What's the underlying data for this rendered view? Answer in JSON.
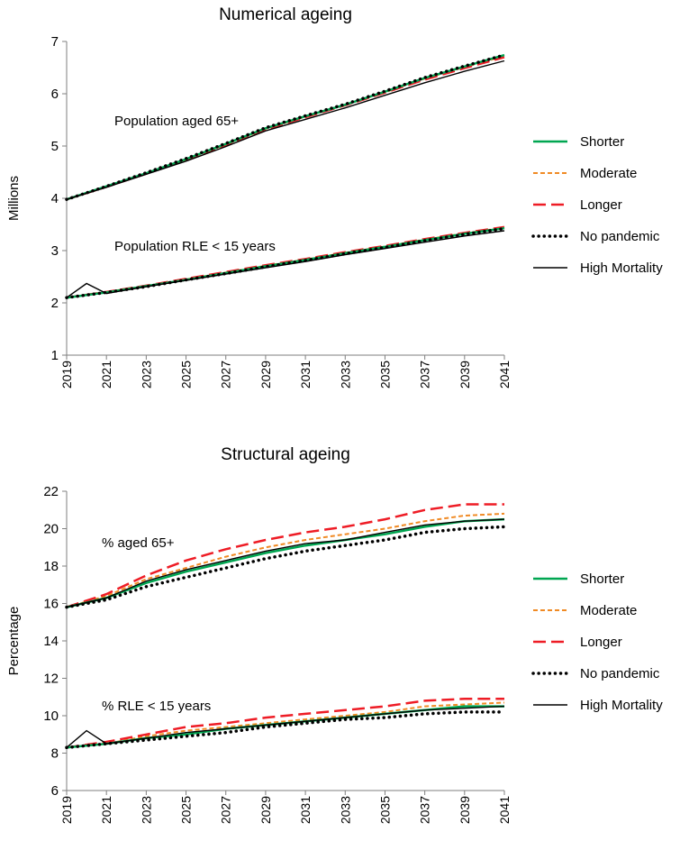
{
  "chart_data": [
    {
      "type": "line",
      "title": "Numerical ageing",
      "xlabel": "",
      "ylabel": "Millions",
      "xlim": [
        2019,
        2041
      ],
      "ylim": [
        1,
        7
      ],
      "yticks": [
        1,
        2,
        3,
        4,
        5,
        6,
        7
      ],
      "xticks": [
        2019,
        2021,
        2023,
        2025,
        2027,
        2029,
        2031,
        2033,
        2035,
        2037,
        2039,
        2041
      ],
      "grid": false,
      "legend_position": "right",
      "annotations": [
        "Population aged 65+",
        "Population RLE < 15 years"
      ],
      "groups": [
        {
          "label": "Population aged 65+",
          "series": [
            {
              "name": "Shorter",
              "x": [
                2019,
                2021,
                2023,
                2025,
                2027,
                2029,
                2031,
                2033,
                2035,
                2037,
                2039,
                2041
              ],
              "values": [
                3.98,
                4.23,
                4.48,
                4.75,
                5.04,
                5.34,
                5.57,
                5.79,
                6.04,
                6.3,
                6.52,
                6.74
              ]
            },
            {
              "name": "Moderate",
              "x": [
                2019,
                2021,
                2023,
                2025,
                2027,
                2029,
                2031,
                2033,
                2035,
                2037,
                2039,
                2041
              ],
              "values": [
                3.98,
                4.22,
                4.48,
                4.74,
                5.03,
                5.33,
                5.56,
                5.79,
                6.03,
                6.29,
                6.51,
                6.72
              ]
            },
            {
              "name": "Longer",
              "x": [
                2019,
                2021,
                2023,
                2025,
                2027,
                2029,
                2031,
                2033,
                2035,
                2037,
                2039,
                2041
              ],
              "values": [
                3.98,
                4.22,
                4.47,
                4.73,
                5.02,
                5.32,
                5.55,
                5.78,
                6.02,
                6.27,
                6.49,
                6.7
              ]
            },
            {
              "name": "No pandemic",
              "x": [
                2019,
                2021,
                2023,
                2025,
                2027,
                2029,
                2031,
                2033,
                2035,
                2037,
                2039,
                2041
              ],
              "values": [
                3.98,
                4.23,
                4.49,
                4.76,
                5.05,
                5.35,
                5.58,
                5.8,
                6.05,
                6.31,
                6.53,
                6.74
              ]
            },
            {
              "name": "High Mortality",
              "x": [
                2019,
                2021,
                2023,
                2025,
                2027,
                2029,
                2031,
                2033,
                2035,
                2037,
                2039,
                2041
              ],
              "values": [
                3.98,
                4.21,
                4.46,
                4.71,
                4.99,
                5.29,
                5.51,
                5.73,
                5.97,
                6.21,
                6.43,
                6.63
              ]
            }
          ]
        },
        {
          "label": "Population RLE < 15 years",
          "series": [
            {
              "name": "Shorter",
              "x": [
                2019,
                2021,
                2023,
                2025,
                2027,
                2029,
                2031,
                2033,
                2035,
                2037,
                2039,
                2041
              ],
              "values": [
                2.1,
                2.2,
                2.32,
                2.44,
                2.57,
                2.7,
                2.82,
                2.95,
                3.07,
                3.2,
                3.32,
                3.43
              ]
            },
            {
              "name": "Moderate",
              "x": [
                2019,
                2021,
                2023,
                2025,
                2027,
                2029,
                2031,
                2033,
                2035,
                2037,
                2039,
                2041
              ],
              "values": [
                2.1,
                2.21,
                2.32,
                2.45,
                2.58,
                2.71,
                2.83,
                2.96,
                3.08,
                3.21,
                3.33,
                3.44
              ]
            },
            {
              "name": "Longer",
              "x": [
                2019,
                2021,
                2023,
                2025,
                2027,
                2029,
                2031,
                2033,
                2035,
                2037,
                2039,
                2041
              ],
              "values": [
                2.1,
                2.21,
                2.33,
                2.46,
                2.59,
                2.72,
                2.84,
                2.97,
                3.09,
                3.22,
                3.34,
                3.45
              ]
            },
            {
              "name": "No pandemic",
              "x": [
                2019,
                2021,
                2023,
                2025,
                2027,
                2029,
                2031,
                2033,
                2035,
                2037,
                2039,
                2041
              ],
              "values": [
                2.1,
                2.2,
                2.31,
                2.44,
                2.56,
                2.69,
                2.81,
                2.94,
                3.06,
                3.19,
                3.31,
                3.42
              ]
            },
            {
              "name": "High Mortality",
              "x": [
                2019,
                2020,
                2021,
                2023,
                2025,
                2027,
                2029,
                2031,
                2033,
                2035,
                2037,
                2039,
                2041
              ],
              "values": [
                2.1,
                2.37,
                2.18,
                2.31,
                2.43,
                2.55,
                2.67,
                2.79,
                2.92,
                3.04,
                3.16,
                3.28,
                3.38
              ]
            }
          ]
        }
      ]
    },
    {
      "type": "line",
      "title": "Structural ageing",
      "xlabel": "",
      "ylabel": "Percentage",
      "xlim": [
        2019,
        2041
      ],
      "ylim": [
        6,
        22
      ],
      "yticks": [
        6,
        8,
        10,
        12,
        14,
        16,
        18,
        20,
        22
      ],
      "xticks": [
        2019,
        2021,
        2023,
        2025,
        2027,
        2029,
        2031,
        2033,
        2035,
        2037,
        2039,
        2041
      ],
      "grid": false,
      "legend_position": "right",
      "annotations": [
        "% aged 65+",
        "% RLE < 15 years"
      ],
      "groups": [
        {
          "label": "% aged 65+",
          "series": [
            {
              "name": "Shorter",
              "x": [
                2019,
                2021,
                2023,
                2025,
                2027,
                2029,
                2031,
                2033,
                2035,
                2037,
                2039,
                2041
              ],
              "values": [
                15.8,
                16.3,
                17.1,
                17.7,
                18.2,
                18.7,
                19.1,
                19.4,
                19.7,
                20.1,
                20.4,
                20.5
              ]
            },
            {
              "name": "Moderate",
              "x": [
                2019,
                2021,
                2023,
                2025,
                2027,
                2029,
                2031,
                2033,
                2035,
                2037,
                2039,
                2041
              ],
              "values": [
                15.8,
                16.4,
                17.3,
                17.9,
                18.5,
                19.0,
                19.4,
                19.7,
                20.0,
                20.4,
                20.7,
                20.8
              ]
            },
            {
              "name": "Longer",
              "x": [
                2019,
                2021,
                2023,
                2025,
                2027,
                2029,
                2031,
                2033,
                2035,
                2037,
                2039,
                2041
              ],
              "values": [
                15.8,
                16.5,
                17.5,
                18.3,
                18.9,
                19.4,
                19.8,
                20.1,
                20.5,
                21.0,
                21.3,
                21.3
              ]
            },
            {
              "name": "No pandemic",
              "x": [
                2019,
                2021,
                2023,
                2025,
                2027,
                2029,
                2031,
                2033,
                2035,
                2037,
                2039,
                2041
              ],
              "values": [
                15.8,
                16.2,
                16.9,
                17.4,
                17.9,
                18.4,
                18.8,
                19.1,
                19.4,
                19.8,
                20.0,
                20.1
              ]
            },
            {
              "name": "High Mortality",
              "x": [
                2019,
                2021,
                2023,
                2025,
                2027,
                2029,
                2031,
                2033,
                2035,
                2037,
                2039,
                2041
              ],
              "values": [
                15.8,
                16.3,
                17.2,
                17.8,
                18.3,
                18.8,
                19.2,
                19.4,
                19.8,
                20.2,
                20.4,
                20.5
              ]
            }
          ]
        },
        {
          "label": "% RLE < 15 years",
          "series": [
            {
              "name": "Shorter",
              "x": [
                2019,
                2021,
                2023,
                2025,
                2027,
                2029,
                2031,
                2033,
                2035,
                2037,
                2039,
                2041
              ],
              "values": [
                8.3,
                8.5,
                8.8,
                9.0,
                9.3,
                9.5,
                9.7,
                9.9,
                10.1,
                10.3,
                10.5,
                10.5
              ]
            },
            {
              "name": "Moderate",
              "x": [
                2019,
                2021,
                2023,
                2025,
                2027,
                2029,
                2031,
                2033,
                2035,
                2037,
                2039,
                2041
              ],
              "values": [
                8.3,
                8.5,
                8.9,
                9.2,
                9.4,
                9.6,
                9.8,
                10.0,
                10.2,
                10.5,
                10.6,
                10.7
              ]
            },
            {
              "name": "Longer",
              "x": [
                2019,
                2021,
                2023,
                2025,
                2027,
                2029,
                2031,
                2033,
                2035,
                2037,
                2039,
                2041
              ],
              "values": [
                8.3,
                8.6,
                9.0,
                9.4,
                9.6,
                9.9,
                10.1,
                10.3,
                10.5,
                10.8,
                10.9,
                10.9
              ]
            },
            {
              "name": "No pandemic",
              "x": [
                2019,
                2021,
                2023,
                2025,
                2027,
                2029,
                2031,
                2033,
                2035,
                2037,
                2039,
                2041
              ],
              "values": [
                8.3,
                8.5,
                8.7,
                8.9,
                9.1,
                9.4,
                9.6,
                9.8,
                9.9,
                10.1,
                10.2,
                10.2
              ]
            },
            {
              "name": "High Mortality",
              "x": [
                2019,
                2020,
                2021,
                2023,
                2025,
                2027,
                2029,
                2031,
                2033,
                2035,
                2037,
                2039,
                2041
              ],
              "values": [
                8.3,
                9.2,
                8.5,
                8.8,
                9.1,
                9.3,
                9.5,
                9.7,
                9.9,
                10.1,
                10.3,
                10.4,
                10.5
              ]
            }
          ]
        }
      ]
    }
  ],
  "legend": [
    {
      "name": "Shorter",
      "color": "#00a651",
      "dash": "solid"
    },
    {
      "name": "Moderate",
      "color": "#f08a24",
      "dash": "short-dash"
    },
    {
      "name": "Longer",
      "color": "#ee1c25",
      "dash": "long-dash"
    },
    {
      "name": "No pandemic",
      "color": "#000000",
      "dash": "dotted"
    },
    {
      "name": "High Mortality",
      "color": "#000000",
      "dash": "solid-thin"
    }
  ]
}
